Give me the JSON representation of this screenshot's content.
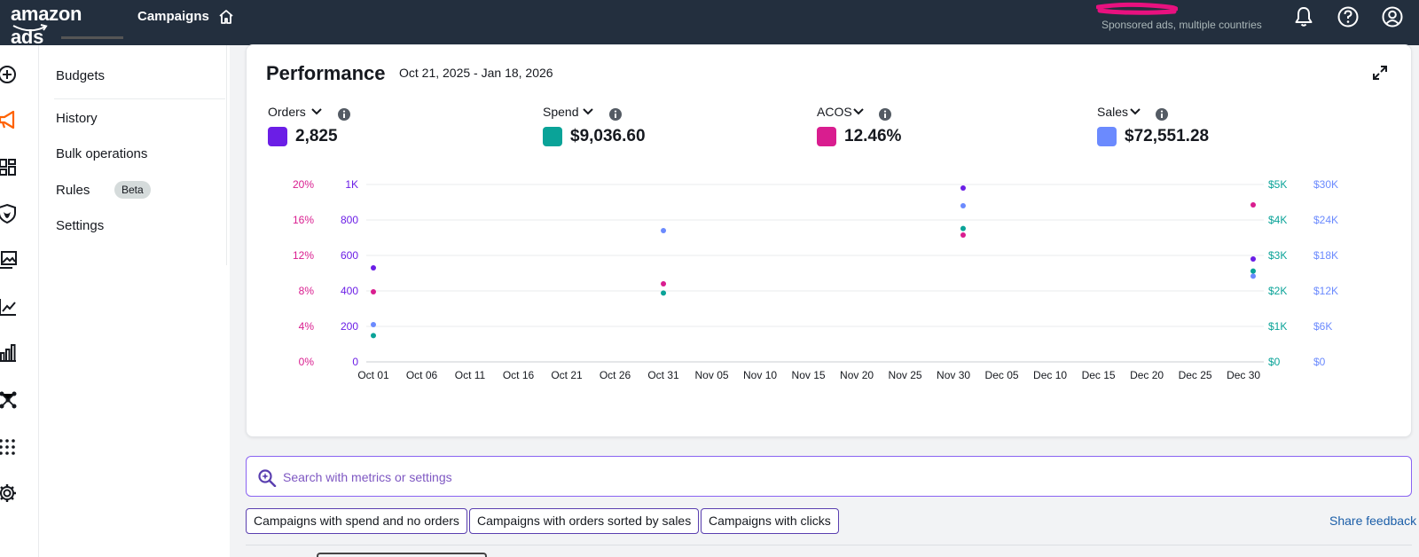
{
  "topbar": {
    "logo_text": "amazon ads",
    "nav_title": "Campaigns",
    "account_label": "Sponsored ads, multiple countries",
    "icons": [
      "home-icon",
      "bell-icon",
      "help-icon",
      "user-icon"
    ]
  },
  "rail": {
    "icons": [
      "plus-circle-icon",
      "megaphone-icon",
      "dashboard-icon",
      "shield-icon",
      "images-icon",
      "trend-line-icon",
      "bar-chart-icon",
      "network-icon",
      "apps-grid-icon",
      "gear-icon"
    ],
    "active_color": "#ff6200"
  },
  "subnav": {
    "items": [
      {
        "label": "Budgets"
      },
      {
        "label": "History"
      },
      {
        "label": "Bulk operations"
      },
      {
        "label": "Rules",
        "badge": "Beta"
      },
      {
        "label": "Settings"
      }
    ]
  },
  "performance": {
    "title": "Performance",
    "date_range": "Oct 21, 2025 - Jan 18, 2026",
    "metrics": [
      {
        "label": "Orders",
        "value": "2,825",
        "color": "#6b1ee6"
      },
      {
        "label": "Spend",
        "value": "$9,036.60",
        "color": "#0aa398"
      },
      {
        "label": "ACOS",
        "value": "12.46%",
        "color": "#d91d8f"
      },
      {
        "label": "Sales",
        "value": "$72,551.28",
        "color": "#6b8afe"
      }
    ]
  },
  "chart_data": {
    "type": "scatter",
    "x_ticks": [
      "Oct 01",
      "Oct 06",
      "Oct 11",
      "Oct 16",
      "Oct 21",
      "Oct 26",
      "Oct 31",
      "Nov 05",
      "Nov 10",
      "Nov 15",
      "Nov 20",
      "Nov 25",
      "Nov 30",
      "Dec 05",
      "Dec 10",
      "Dec 15",
      "Dec 20",
      "Dec 25",
      "Dec 30"
    ],
    "axes": {
      "acos": {
        "ticks": [
          "0%",
          "4%",
          "8%",
          "12%",
          "16%",
          "20%"
        ],
        "range": [
          0,
          20
        ],
        "color": "#d91d8f"
      },
      "orders": {
        "ticks": [
          "0",
          "200",
          "400",
          "600",
          "800",
          "1K"
        ],
        "range": [
          0,
          1000
        ],
        "color": "#6b1ee6"
      },
      "spend": {
        "ticks": [
          "$0",
          "$1K",
          "$2K",
          "$3K",
          "$4K",
          "$5K"
        ],
        "range": [
          0,
          5000
        ],
        "color": "#0aa398"
      },
      "sales": {
        "ticks": [
          "$0",
          "$6K",
          "$12K",
          "$18K",
          "$24K",
          "$30K"
        ],
        "range": [
          0,
          30000
        ],
        "color": "#6b8afe"
      }
    },
    "series": [
      {
        "name": "Orders",
        "axis": "orders",
        "color": "#6b1ee6",
        "points": [
          {
            "x": "Oct 01",
            "y": 530
          },
          {
            "x": "Dec 01",
            "y": 980
          },
          {
            "x": "Dec 31",
            "y": 580
          }
        ]
      },
      {
        "name": "Spend",
        "axis": "spend",
        "color": "#0aa398",
        "points": [
          {
            "x": "Oct 01",
            "y": 740
          },
          {
            "x": "Oct 31",
            "y": 1940
          },
          {
            "x": "Dec 01",
            "y": 3760
          },
          {
            "x": "Dec 31",
            "y": 2560
          }
        ]
      },
      {
        "name": "ACOS",
        "axis": "acos",
        "color": "#d91d8f",
        "points": [
          {
            "x": "Oct 01",
            "y": 7.9
          },
          {
            "x": "Oct 31",
            "y": 8.8
          },
          {
            "x": "Dec 01",
            "y": 14.3
          },
          {
            "x": "Dec 31",
            "y": 17.7
          }
        ]
      },
      {
        "name": "Sales",
        "axis": "sales",
        "color": "#6b8afe",
        "points": [
          {
            "x": "Oct 01",
            "y": 6300
          },
          {
            "x": "Oct 31",
            "y": 22200
          },
          {
            "x": "Dec 01",
            "y": 26400
          },
          {
            "x": "Dec 31",
            "y": 14500
          }
        ]
      }
    ],
    "grid": true
  },
  "search": {
    "placeholder": "Search with metrics or settings"
  },
  "suggestions": [
    {
      "label": "Campaigns with spend and no orders"
    },
    {
      "label": "Campaigns with orders sorted by sales"
    },
    {
      "label": "Campaigns with clicks"
    }
  ],
  "share_feedback": "Share feedback"
}
